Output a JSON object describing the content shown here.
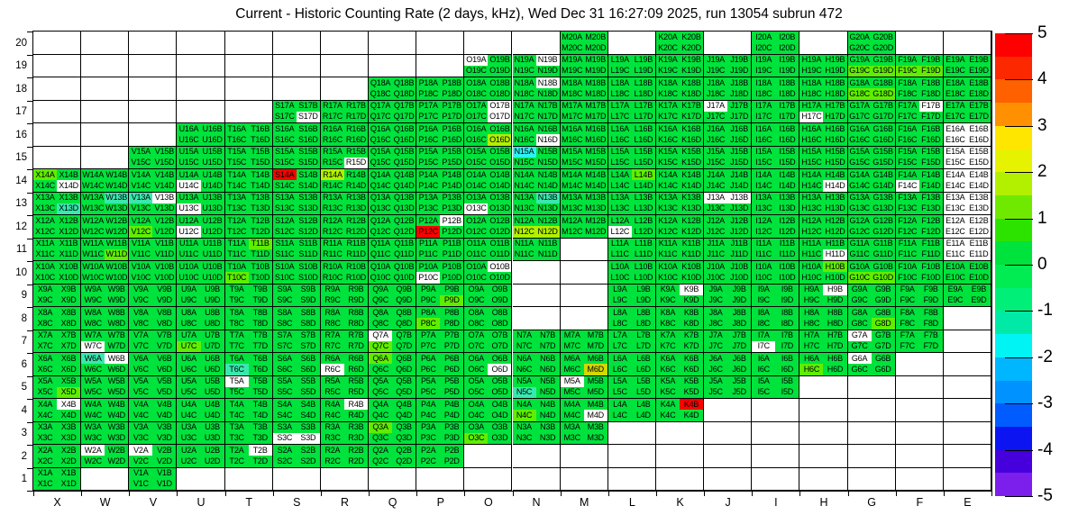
{
  "title": "Current - Historic Counting Rate (2 days, kHz), Wed Dec 31 16:27:09 2025, run 13054 subrun 472",
  "chart_data": {
    "type": "heatmap",
    "title": "Current - Historic Counting Rate (2 days, kHz), Wed Dec 31 16:27:09 2025, run 13054 subrun 472",
    "columns": [
      "X",
      "W",
      "V",
      "U",
      "T",
      "S",
      "R",
      "Q",
      "P",
      "O",
      "N",
      "M",
      "L",
      "K",
      "J",
      "I",
      "H",
      "G",
      "F",
      "E"
    ],
    "row_labels": [
      "20",
      "19",
      "18",
      "17",
      "16",
      "15",
      "14",
      "13",
      "12",
      "11",
      "10",
      "9",
      "8",
      "7",
      "6",
      "5",
      "4",
      "3",
      "2",
      "1"
    ],
    "suffixes": [
      "A",
      "B",
      "C",
      "D"
    ],
    "palette": {
      "g": "#00e23c",
      "G": "#5fee00",
      "y": "#b2f000",
      "Y": "#d3d800",
      "R": "#ff0000",
      "w": "#ffffff",
      "c": "#2df2f2",
      "t": "#38e9ae"
    },
    "approx_value_by_code": {
      "g": 0,
      "G": 1,
      "y": 2,
      "Y": 2.5,
      "R": 5,
      "c": -1.5,
      "t": -1,
      "w": null
    },
    "cells": [
      "M20 gggg",
      "K20 gggg",
      "I20 gggg",
      "G20 gggg",
      "O19 wggg",
      "N19 gwgg",
      "M19 gggg",
      "L19 gggg",
      "K19 gggg",
      "J19 gggg",
      "I19 gggg",
      "H19 gggg",
      "G19 ggGG",
      "F19 ggGG",
      "E19 gggg",
      "Q18 gggg",
      "P18 gggg",
      "O18 gggg",
      "N18 gwgg",
      "M18 gggg",
      "L18 gggg",
      "K18 gggg",
      "J18 gggg",
      "I18 gggg",
      "H18 gggg",
      "G18 ggGG",
      "F18 gggg",
      "E18 gggg",
      "S17 gggw",
      "R17 gggg",
      "Q17 gggg",
      "P17 gggg",
      "O17 gwgw",
      "N17 gggg",
      "M17 gggg",
      "L17 gggg",
      "K17 gggg",
      "J17 wggg",
      "I17 gggg",
      "H17 ggwg",
      "G17 gggg",
      "F17 gwgg",
      "E17 gggg",
      "U16 gggg",
      "T16 gggg",
      "S16 gggg",
      "R16 gggg",
      "Q16 gggg",
      "P16 gggg",
      "O16 gggy",
      "N16 gggw",
      "M16 gggg",
      "L16 gggg",
      "K16 gggg",
      "J16 gggg",
      "I16 gggg",
      "H16 gggg",
      "G16 gggg",
      "F16 gggg",
      "E16 wwww",
      "V15 gggg",
      "U15 gggg",
      "T15 gggg",
      "S15 gggg",
      "R15 gggw",
      "Q15 gggg",
      "P15 gggg",
      "O15 gggg",
      "N15 cggg",
      "M15 gggg",
      "L15 gggg",
      "K15 gggg",
      "J15 gggg",
      "I15 gggg",
      "H15 gggg",
      "G15 gggg",
      "F15 gggg",
      "E15 wwww",
      "X14 Gggw",
      "W14 gggg",
      "V14 gggg",
      "U14 ggwg",
      "T14 gggg",
      "S14 Rggg",
      "R14 yggg",
      "Q14 gggg",
      "P14 gggg",
      "O14 gggg",
      "N14 gggg",
      "M14 gggg",
      "L14 gGgg",
      "K14 gggg",
      "J14 gggg",
      "I14 gggg",
      "H14 gggw",
      "G14 gggg",
      "F14 ggwg",
      "E14 wwww",
      "X13 gggt",
      "W13 gtgg",
      "V13 twgg",
      "U13 ggwg",
      "T13 gggg",
      "S13 gggg",
      "R13 gggg",
      "Q13 gggg",
      "P13 gggg",
      "O13 ggwg",
      "N13 gtgg",
      "M13 gggg",
      "L13 gggg",
      "K13 gggg",
      "J13 wwgg",
      "I13 gggg",
      "H13 gggg",
      "G13 gggg",
      "F13 gggg",
      "E13 wwww",
      "X12 gggg",
      "W12 gggg",
      "V12 ggGg",
      "U12 ggwg",
      "T12 gggg",
      "S12 gggg",
      "R12 gggg",
      "Q12 gggg",
      "P12 gwRg",
      "O12 gggg",
      "N12 ggyy",
      "M12 gggg",
      "L12 ggwg",
      "K12 gggg",
      "J12 gggg",
      "I12 gggg",
      "H12 gggg",
      "G12 gggg",
      "F12 gggg",
      "E12 wwww",
      "X11 gggg",
      "W11 gggG",
      "V11 gggg",
      "U11 gggg",
      "T11 gGgg",
      "S11 gggg",
      "R11 gggg",
      "Q11 gggg",
      "P11 gggg",
      "O11 gggg",
      "N11 gggg",
      "L11 gggg",
      "K11 gggg",
      "J11 gggg",
      "I11 gggg",
      "H11 gggw",
      "G11 gggg",
      "F11 gggg",
      "E11 wwww",
      "X10 gggg",
      "W10 gggg",
      "V10 gggg",
      "U10 gggg",
      "T10 ggGg",
      "S10 gggg",
      "R10 gggg",
      "Q10 gggg",
      "P10 ggwg",
      "O10 gwgg",
      "L10 gggg",
      "K10 gggg",
      "J10 gggg",
      "I10 gggg",
      "H10 gGgg",
      "G10 ggGG",
      "F10 gggg",
      "E10 gggg",
      "X9 gggg",
      "W9 gggg",
      "V9 gggg",
      "U9 gggg",
      "T9 gggg",
      "S9 gggg",
      "R9 gggg",
      "Q9 gggg",
      "P9 gggG",
      "O9 gggg",
      "L9 gggg",
      "K9 gwgg",
      "J9 gggg",
      "I9 gggg",
      "H9 gwgg",
      "G9 gggg",
      "F9 gggg",
      "E9 gggg",
      "X8 gggg",
      "W8 gggg",
      "V8 gggg",
      "U8 gggg",
      "T8 gggg",
      "S8 gggg",
      "R8 gggg",
      "Q8 gggg",
      "P8 ggGg",
      "O8 gggg",
      "L8 gggg",
      "K8 gggg",
      "J8 gggg",
      "I8 gggg",
      "H8 gggg",
      "G8 gggG",
      "F8 gggg",
      "X7 gggg",
      "W7 ggwg",
      "V7 gggg",
      "U7 ggGg",
      "T7 gggg",
      "S7 gggg",
      "R7 gggg",
      "Q7 wgGg",
      "P7 gggg",
      "O7 gggg",
      "N7 gggg",
      "M7 gggg",
      "L7 gggg",
      "K7 gggg",
      "J7 gggg",
      "I7 ggwg",
      "H7 gggg",
      "G7 wggg",
      "F7 gggg",
      "X6 gggg",
      "W6 twgg",
      "V6 gggg",
      "U6 gggg",
      "T6 ggtg",
      "S6 gggg",
      "R6 ggwg",
      "Q6 Gggg",
      "P6 gggg",
      "O6 gggw",
      "N6 gggg",
      "M6 gggY",
      "L6 gggg",
      "K6 gggg",
      "J6 gggg",
      "I6 gggg",
      "H6 ggGg",
      "G6 wggg",
      "X5 gggG",
      "W5 gggg",
      "V5 gggg",
      "U5 gggg",
      "T5 wggg",
      "S5 gggg",
      "R5 gggg",
      "Q5 gggg",
      "P5 gggg",
      "O5 gggg",
      "N5 ggtg",
      "M5 wggg",
      "L5 gggg",
      "K5 gggg",
      "J5 gggg",
      "I5 gggg",
      "X4 gwgg",
      "W4 gggg",
      "V4 gggg",
      "U4 gggg",
      "T4 gggg",
      "S4 gggg",
      "R4 gwgg",
      "Q4 gggg",
      "P4 gggg",
      "O4 gggg",
      "N4 ggGg",
      "M4 gggw",
      "L4 gggg",
      "K4 gRgg",
      "X3 gggg",
      "W3 gggg",
      "V3 gggg",
      "U3 gggg",
      "T3 gggg",
      "S3 ggww",
      "R3 gggg",
      "Q3 Gggg",
      "P3 gggg",
      "O3 ggGg",
      "N3 gggg",
      "M3 gggg",
      "X2 gggg",
      "W2 wggg",
      "V2 wggg",
      "U2 gggg",
      "T2 gwgg",
      "S2 gggg",
      "R2 gggg",
      "Q2 gggg",
      "P2 gggg",
      "X1 gggg",
      "V1 gggg"
    ],
    "colorbar": {
      "min": -5,
      "max": 5,
      "tick_labels": [
        "5",
        "4",
        "3",
        "2",
        "1",
        "0",
        "-1",
        "-2",
        "-3",
        "-4",
        "-5"
      ],
      "band_colors": [
        "#ff0000",
        "#fb2800",
        "#ff6000",
        "#ff9000",
        "#ffe600",
        "#e6f200",
        "#b2f000",
        "#70e900",
        "#2ce300",
        "#00e23c",
        "#00ec52",
        "#00ef78",
        "#00e9a6",
        "#00f4f4",
        "#00b6ff",
        "#0092ff",
        "#005cff",
        "#0d14f2",
        "#4600dc",
        "#7c1fec"
      ]
    },
    "legend_position": "right",
    "grid": "on"
  }
}
